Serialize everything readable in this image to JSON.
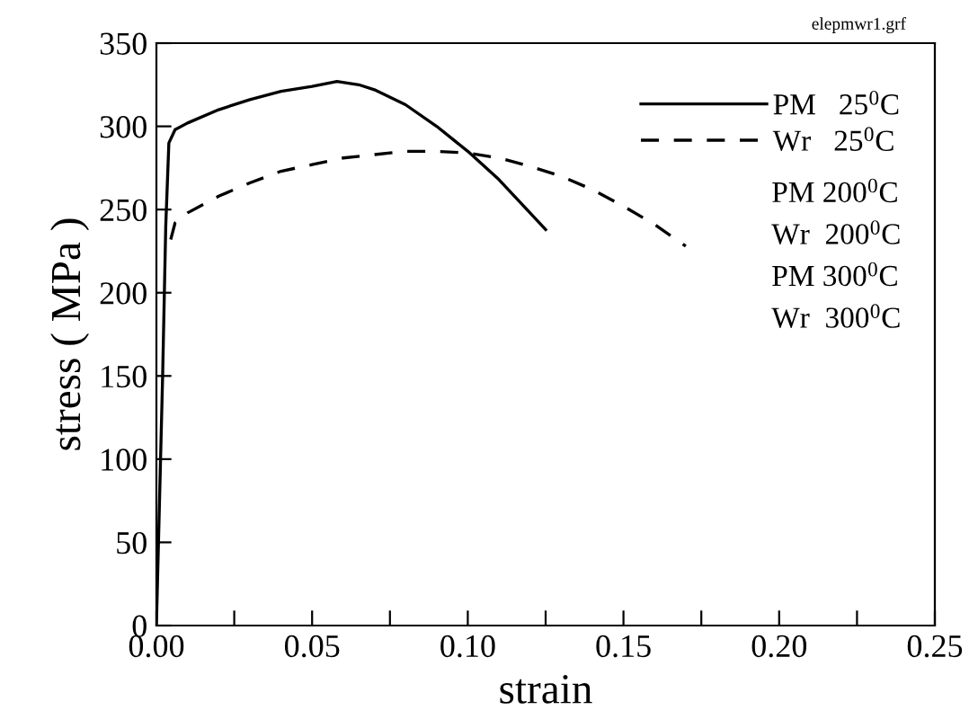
{
  "chart_data": {
    "type": "line",
    "xlabel": "strain",
    "ylabel": "stress ( MPa )",
    "xlim": [
      0,
      0.25
    ],
    "ylim": [
      0,
      350
    ],
    "xticks": [
      {
        "value": 0,
        "label": "0.00"
      },
      {
        "value": 0.025,
        "label": null
      },
      {
        "value": 0.05,
        "label": "0.05"
      },
      {
        "value": 0.075,
        "label": null
      },
      {
        "value": 0.1,
        "label": "0.10"
      },
      {
        "value": 0.125,
        "label": null
      },
      {
        "value": 0.15,
        "label": "0.15"
      },
      {
        "value": 0.175,
        "label": null
      },
      {
        "value": 0.2,
        "label": "0.20"
      },
      {
        "value": 0.225,
        "label": null
      },
      {
        "value": 0.25,
        "label": "0.25"
      }
    ],
    "yticks": [
      0,
      50,
      100,
      150,
      200,
      250,
      300,
      350
    ],
    "grid": false,
    "legend": "top right",
    "marker": "none",
    "series": [
      {
        "name": "PM   25$^{0}$C",
        "color": "#000000",
        "line_style": "solid",
        "x": [
          0,
          0.002,
          0.003,
          0.004,
          0.006,
          0.01,
          0.02,
          0.03,
          0.04,
          0.05,
          0.058,
          0.065,
          0.07,
          0.08,
          0.09,
          0.1,
          0.11,
          0.12,
          0.125
        ],
        "values": [
          0,
          150,
          240,
          290,
          298,
          302,
          310,
          316,
          321,
          324,
          327,
          325,
          322,
          313,
          300,
          285,
          268,
          248,
          238
        ]
      },
      {
        "name": "Wr   25$^{0}$C",
        "color": "#000000",
        "line_style": "dashed",
        "x": [
          0.0046,
          0.006,
          0.01,
          0.02,
          0.03,
          0.04,
          0.05,
          0.06,
          0.07,
          0.08,
          0.09,
          0.1,
          0.11,
          0.12,
          0.13,
          0.14,
          0.15,
          0.16,
          0.17
        ],
        "values": [
          232,
          242,
          248,
          258,
          266,
          273,
          277,
          281,
          283,
          285,
          285,
          284,
          281,
          276,
          270,
          262,
          252,
          241,
          228
        ]
      }
    ],
    "annotations": [
      "PM 200$^{0}$C",
      "Wr  200$^{0}$C",
      "PM 300$^{0}$C",
      "Wr  300$^{0}$C",
      "elepmwr1.grf"
    ]
  }
}
